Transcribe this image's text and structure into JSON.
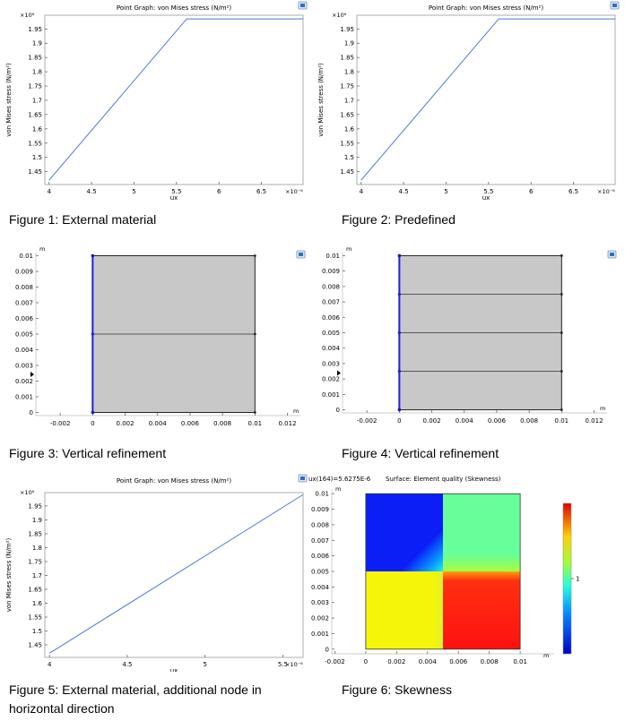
{
  "captions": {
    "fig1": "Figure 1: External material",
    "fig2": "Figure 2: Predefined",
    "fig3": "Figure 3: Vertical refinement",
    "fig4": "Figure 4: Vertical refinement",
    "fig5_line1": "Figure 5: External material, additional node in",
    "fig5_line2": "horizontal direction",
    "fig6": "Figure 6: Skewness"
  },
  "chart_data": [
    {
      "type": "line",
      "title": "Point Graph: von Mises stress (N/m²)",
      "xlabel": "ux",
      "ylabel": "von Mises stress (N/m²)",
      "x_multiplier": "×10⁻⁶",
      "y_multiplier": "×10⁶",
      "x_ticks": [
        "4",
        "4.5",
        "5",
        "5.5",
        "6",
        "6.5"
      ],
      "y_ticks": [
        "1.45",
        "1.5",
        "1.55",
        "1.6",
        "1.65",
        "1.7",
        "1.75",
        "1.8",
        "1.85",
        "1.9",
        "1.95"
      ],
      "xlim": [
        3.95,
        6.99
      ],
      "ylim": [
        1.405,
        1.998
      ],
      "series": [
        {
          "x": [
            4.0,
            5.62,
            6.99
          ],
          "y": [
            1.42,
            1.985,
            1.985
          ]
        }
      ]
    },
    {
      "type": "line",
      "title": "Point Graph: von Mises stress (N/m²)",
      "xlabel": "ux",
      "ylabel": "von Mises stress (N/m²)",
      "x_multiplier": "×10⁻⁶",
      "y_multiplier": "×10⁶",
      "x_ticks": [
        "4",
        "4.5",
        "5",
        "5.5",
        "6",
        "6.5"
      ],
      "y_ticks": [
        "1.45",
        "1.5",
        "1.55",
        "1.6",
        "1.65",
        "1.7",
        "1.75",
        "1.8",
        "1.85",
        "1.9",
        "1.95"
      ],
      "xlim": [
        3.95,
        6.99
      ],
      "ylim": [
        1.405,
        1.998
      ],
      "series": [
        {
          "x": [
            4.0,
            5.62,
            6.99
          ],
          "y": [
            1.42,
            1.985,
            1.985
          ]
        }
      ]
    },
    {
      "type": "diagram",
      "x_unit": "m",
      "y_unit": "m",
      "x_ticks": [
        "-0.002",
        "0",
        "0.002",
        "0.004",
        "0.006",
        "0.008",
        "0.01",
        "0.012"
      ],
      "y_ticks": [
        "0",
        "0.001",
        "0.002",
        "0.003",
        "0.004",
        "0.005",
        "0.006",
        "0.007",
        "0.008",
        "0.009",
        "0.01"
      ],
      "xlim": [
        -0.0035,
        0.0128
      ],
      "ylim": [
        -0.0002,
        0.0102
      ],
      "domain": [
        0,
        0,
        0.01,
        0.01
      ],
      "horizontal_lines": [
        0.005
      ]
    },
    {
      "type": "diagram",
      "x_unit": "m",
      "y_unit": "m",
      "x_ticks": [
        "-0.002",
        "0",
        "0.002",
        "0.004",
        "0.006",
        "0.008",
        "0.01",
        "0.012"
      ],
      "y_ticks": [
        "0",
        "0.001",
        "0.002",
        "0.003",
        "0.004",
        "0.005",
        "0.006",
        "0.007",
        "0.008",
        "0.009",
        "0.01"
      ],
      "xlim": [
        -0.0035,
        0.0128
      ],
      "ylim": [
        -0.0002,
        0.0102
      ],
      "domain": [
        0,
        0,
        0.01,
        0.01
      ],
      "horizontal_lines": [
        0.0025,
        0.005,
        0.0075
      ]
    },
    {
      "type": "line",
      "title": "Point Graph: von Mises stress (N/m²)",
      "xlabel": "ux",
      "ylabel": "von Mises stress (N/m²)",
      "x_multiplier": "×10⁻⁶",
      "y_multiplier": "×10⁶",
      "x_ticks": [
        "4",
        "4.5",
        "5",
        "5.5"
      ],
      "y_ticks": [
        "1.45",
        "1.5",
        "1.55",
        "1.6",
        "1.65",
        "1.7",
        "1.75",
        "1.8",
        "1.85",
        "1.9",
        "1.95"
      ],
      "xlim": [
        3.97,
        5.63
      ],
      "ylim": [
        1.405,
        1.998
      ],
      "series": [
        {
          "x": [
            4.0,
            5.6275
          ],
          "y": [
            1.42,
            1.99
          ]
        }
      ]
    },
    {
      "type": "heatmap",
      "header_left": "ux(164)=5.6275E-6",
      "header_right": "Surface: Element quality (Skewness)",
      "x_unit": "m",
      "y_unit": "m",
      "x_ticks": [
        "-0.002",
        "0",
        "0.002",
        "0.004",
        "0.006",
        "0.008",
        "0.01"
      ],
      "y_ticks": [
        "0",
        "0.001",
        "0.002",
        "0.003",
        "0.004",
        "0.005",
        "0.006",
        "0.007",
        "0.008",
        "0.009",
        "0.01"
      ],
      "xlim": [
        -0.0022,
        0.0122
      ],
      "ylim": [
        -0.0003,
        0.0103
      ],
      "colorbar_label": "1",
      "colors": {
        "top_left": "#0a1ef5",
        "top_right": "#66ff99",
        "bottom_left": "#f5f50a",
        "bottom_right": "#ff1010"
      }
    }
  ]
}
